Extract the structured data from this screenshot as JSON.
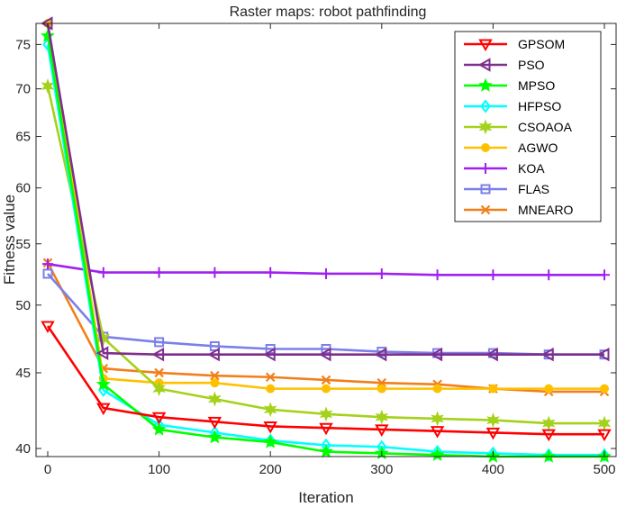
{
  "chart_data": {
    "type": "line",
    "title": "Raster maps: robot pathfinding",
    "xlabel": "Iteration",
    "ylabel": "Fitness value",
    "xlim": [
      0,
      500
    ],
    "ylim": [
      39.5,
      77.5
    ],
    "yscale": "log",
    "x_ticks": [
      0,
      100,
      200,
      300,
      400,
      500
    ],
    "y_ticks": [
      40,
      45,
      50,
      55,
      60,
      65,
      70,
      75
    ],
    "legend_position": "top-right",
    "x": [
      0,
      50,
      100,
      150,
      200,
      250,
      300,
      350,
      400,
      450,
      500
    ],
    "series": [
      {
        "name": "GPSOM",
        "color": "#ff0000",
        "marker": "triangle-down",
        "values": [
          48.4,
          42.6,
          42.0,
          41.7,
          41.4,
          41.3,
          41.2,
          41.1,
          41.0,
          40.9,
          40.9
        ]
      },
      {
        "name": "PSO",
        "color": "#7e2f8e",
        "marker": "triangle-left",
        "values": [
          78.0,
          46.4,
          46.3,
          46.3,
          46.3,
          46.3,
          46.3,
          46.3,
          46.3,
          46.3,
          46.3
        ]
      },
      {
        "name": "MPSO",
        "color": "#00ff00",
        "marker": "star",
        "values": [
          76.0,
          44.2,
          41.2,
          40.7,
          40.4,
          39.8,
          39.7,
          39.6,
          39.5,
          39.5,
          39.5
        ]
      },
      {
        "name": "HFPSO",
        "color": "#00ffff",
        "marker": "diamond",
        "values": [
          75.0,
          43.8,
          41.5,
          41.0,
          40.5,
          40.2,
          40.1,
          39.8,
          39.7,
          39.6,
          39.6
        ]
      },
      {
        "name": "CSOAOA",
        "color": "#a4d21a",
        "marker": "hexagram",
        "values": [
          70.3,
          47.5,
          43.9,
          43.2,
          42.5,
          42.2,
          42.0,
          41.9,
          41.8,
          41.6,
          41.6
        ]
      },
      {
        "name": "AGWO",
        "color": "#ffc000",
        "marker": "circle",
        "values": [
          78.0,
          44.6,
          44.3,
          44.3,
          43.9,
          43.9,
          43.9,
          43.9,
          43.9,
          43.9,
          43.9
        ]
      },
      {
        "name": "KOA",
        "color": "#a020f0",
        "marker": "plus",
        "values": [
          53.3,
          52.6,
          52.6,
          52.6,
          52.6,
          52.5,
          52.5,
          52.4,
          52.4,
          52.4,
          52.4
        ]
      },
      {
        "name": "FLAS",
        "color": "#7b7fe8",
        "marker": "square",
        "values": [
          52.5,
          47.6,
          47.2,
          46.9,
          46.7,
          46.7,
          46.5,
          46.4,
          46.4,
          46.3,
          46.3
        ]
      },
      {
        "name": "MNEARO",
        "color": "#f27f1b",
        "marker": "x",
        "values": [
          53.4,
          45.3,
          45.0,
          44.8,
          44.7,
          44.5,
          44.3,
          44.2,
          43.9,
          43.7,
          43.7
        ]
      }
    ]
  }
}
